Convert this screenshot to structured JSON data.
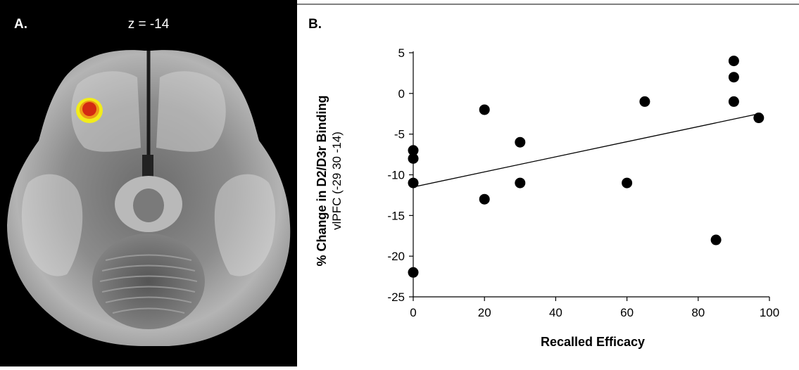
{
  "panel_a": {
    "label": "A.",
    "slice_label": "z = -14",
    "colors": {
      "background": "#000000",
      "blob_outer": "#f2ec1a",
      "blob_inner": "#d42a12"
    }
  },
  "panel_b": {
    "label": "B."
  },
  "chart_data": {
    "type": "scatter",
    "title": "",
    "xlabel": "Recalled Efficacy",
    "ylabel": "% Change in D2/D3r Binding",
    "ylabel_sub": "vlPFC (-29 30 -14)",
    "xlim": [
      0,
      100
    ],
    "ylim": [
      -25,
      5
    ],
    "xticks": [
      "0",
      "20",
      "40",
      "60",
      "80",
      "100"
    ],
    "yticks": [
      "5",
      "0",
      "-5",
      "-10",
      "-15",
      "-20",
      "-25"
    ],
    "grid": false,
    "series": [
      {
        "x": [
          0,
          0,
          0,
          0,
          20,
          20,
          30,
          30,
          60,
          65,
          85,
          90,
          90,
          90,
          97
        ],
        "y": [
          -7,
          -8,
          -11,
          -22,
          -2,
          -13,
          -6,
          -11,
          -11,
          -1,
          -18,
          4,
          2,
          -1,
          -3
        ]
      }
    ],
    "trendline": {
      "x": [
        0,
        97
      ],
      "y": [
        -11.5,
        -2.5
      ]
    },
    "colors": {
      "points": "#000000",
      "line": "#000000",
      "axes": "#000000"
    }
  }
}
